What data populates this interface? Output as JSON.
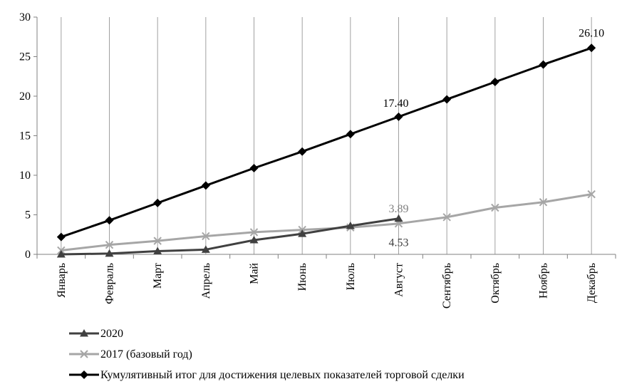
{
  "chart_data": {
    "type": "line",
    "title": "",
    "xlabel": "",
    "ylabel": "",
    "ylim": [
      0,
      30
    ],
    "y_ticks": [
      "0",
      "5",
      "10",
      "15",
      "20",
      "25",
      "30"
    ],
    "grid": "vertical",
    "legend_position": "bottom",
    "categories": [
      "Январь",
      "Февраль",
      "Март",
      "Апрель",
      "Май",
      "Июнь",
      "Июль",
      "Август",
      "Сентябрь",
      "Октябрь",
      "Ноябрь",
      "Декабрь"
    ],
    "series": [
      {
        "name": "2020",
        "color": "#404040",
        "marker": "triangle",
        "values": [
          0.0,
          0.1,
          0.4,
          0.6,
          1.8,
          2.6,
          3.6,
          4.53,
          null,
          null,
          null,
          null
        ]
      },
      {
        "name": "2017 (базовый год)",
        "color": "#a6a6a6",
        "marker": "cross",
        "values": [
          0.5,
          1.2,
          1.7,
          2.3,
          2.8,
          3.1,
          3.4,
          3.89,
          4.7,
          5.9,
          6.6,
          7.6
        ]
      },
      {
        "name": "Кумулятивный итог для достижения целевых показателей торговой сделки",
        "color": "#000000",
        "marker": "diamond",
        "values": [
          2.2,
          4.3,
          6.5,
          8.7,
          10.9,
          13.0,
          15.2,
          17.4,
          19.6,
          21.8,
          24.0,
          26.1
        ]
      }
    ],
    "data_labels": [
      {
        "series": 2,
        "index": 7,
        "text": "17.40",
        "color": "#000000",
        "placement": "above-left"
      },
      {
        "series": 2,
        "index": 11,
        "text": "26.10",
        "color": "#000000",
        "placement": "above"
      },
      {
        "series": 1,
        "index": 7,
        "text": "3.89",
        "color": "#808080",
        "placement": "above"
      },
      {
        "series": 0,
        "index": 7,
        "text": "4.53",
        "color": "#404040",
        "placement": "below"
      }
    ]
  }
}
